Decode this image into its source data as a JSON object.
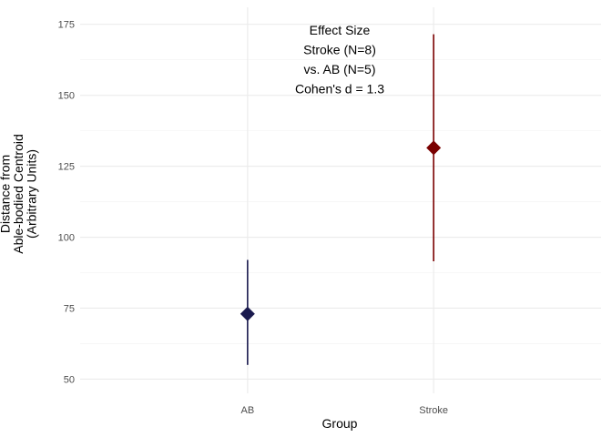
{
  "chart_data": {
    "type": "scatter",
    "xlabel": "Group",
    "ylabel_lines": [
      "Distance from",
      "Able-bodied Centroid",
      "(Arbitrary Units)"
    ],
    "categories": [
      "AB",
      "Stroke"
    ],
    "ylim": [
      45,
      181
    ],
    "yticks": [
      50,
      75,
      100,
      125,
      150,
      175
    ],
    "grid": true,
    "points": [
      {
        "category": "AB",
        "mean": 73,
        "lower": 55,
        "upper": 92,
        "color": "#1a1a4e"
      },
      {
        "category": "Stroke",
        "mean": 131.5,
        "lower": 91.5,
        "upper": 171.5,
        "color": "#7a0000"
      }
    ],
    "annotation": [
      "Effect Size",
      "Stroke (N=8)",
      "vs. AB (N=5)",
      "Cohen's d = 1.3"
    ]
  }
}
